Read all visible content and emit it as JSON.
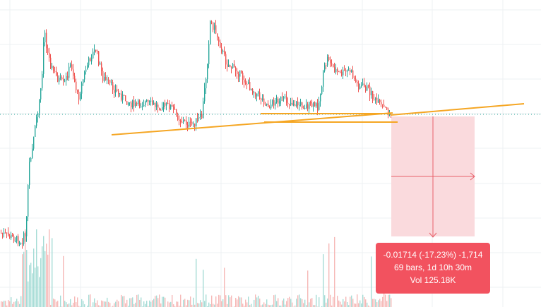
{
  "chart_data": {
    "type": "candlestick",
    "grid": true,
    "legend": "none",
    "price_level_line": "dotted horizontal line at current price",
    "trend_lines": [
      {
        "name": "support trend line",
        "color": "#f5a623"
      },
      {
        "name": "horizontal level 1",
        "color": "#f5a623"
      },
      {
        "name": "horizontal level 2",
        "color": "#f5a623"
      },
      {
        "name": "rising line",
        "color": "#f5a623"
      }
    ],
    "measurement": {
      "change": "-0.01714 (-17.23%) -1,714",
      "bars": "69 bars, 1d 10h 30m",
      "volume": "Vol 125.18K"
    }
  },
  "colors": {
    "up": "#26a69a",
    "down": "#ef5350",
    "trend": "#f5a623",
    "level": "#26a69a",
    "measure_fill": "#fadadd",
    "measure_arrow": "#e8616a",
    "tooltip_bg": "#f2525f"
  }
}
